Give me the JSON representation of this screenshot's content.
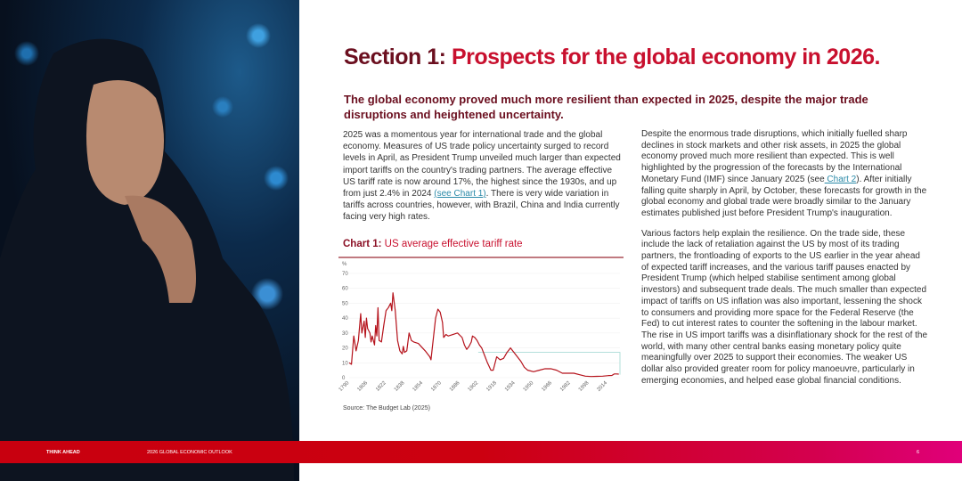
{
  "section": {
    "prefix": "Section 1:",
    "title": "Prospects for the global economy in 2026."
  },
  "subtitle": "The global economy proved much more resilient than expected in 2025, despite the major trade disruptions and heightened uncertainty.",
  "left_column": {
    "p1_before": "2025 was a momentous year for international trade and the global economy. Measures of US trade policy uncertainty surged to record levels in April, as President Trump unveiled much larger than expected import tariffs on the country's trading partners. The average effective US tariff rate is now around 17%, the highest since the 1930s, and up from just 2.4% in 2024 ",
    "p1_link": "(see Chart 1)",
    "p1_after": ". There is very wide variation in tariffs across countries, however, with Brazil, China and India currently facing very high rates."
  },
  "right_column": {
    "p1_before": "Despite the enormous trade disruptions, which initially fuelled sharp declines in stock markets and other risk assets, in 2025 the global economy proved much more resilient than expected. This is well highlighted by the progression of the forecasts by the International Monetary Fund (IMF) since January 2025 (see",
    "p1_link": " Chart 2",
    "p1_after": "). After initially falling quite sharply in April, by October, these forecasts for growth in the global economy and global trade were broadly similar to the January estimates published just before President Trump's inauguration.",
    "p2": "Various factors help explain the resilience. On the trade side, these include the lack of retaliation against the US by most of its trading partners, the frontloading of exports to the US earlier in the year ahead of expected tariff increases, and the various tariff pauses enacted by President Trump (which helped stabilise sentiment among global investors) and subsequent trade deals. The much smaller than expected impact of tariffs on US inflation was also important, lessening the shock to consumers and providing more space for the Federal Reserve (the Fed) to cut interest rates to counter the softening in the labour market. The rise in US import tariffs was a disinflationary shock for the rest of the world, with many other central banks easing monetary policy quite meaningfully over 2025 to support their economies. The weaker US dollar also provided greater room for policy manoeuvre, particularly in emerging economies, and helped ease global financial conditions."
  },
  "chart_data": {
    "type": "line",
    "title_prefix": "Chart 1:",
    "title": "US average effective tariff rate",
    "ylabel": "%",
    "ylim": [
      0,
      70
    ],
    "yticks": [
      "0",
      "10",
      "20",
      "30",
      "40",
      "50",
      "60",
      "70"
    ],
    "xlim": [
      1790,
      2025
    ],
    "xticks": [
      "1790",
      "1806",
      "1822",
      "1838",
      "1854",
      "1870",
      "1886",
      "1902",
      "1918",
      "1934",
      "1950",
      "1966",
      "1982",
      "1998",
      "2014"
    ],
    "grid": true,
    "line_color": "#b5121b",
    "reference_color": "#a9dcd6",
    "reference_value": 17,
    "series": [
      {
        "x": [
          1790,
          1792,
          1794,
          1796,
          1798,
          1800,
          1801,
          1803,
          1804,
          1805,
          1806,
          1808,
          1809,
          1810,
          1812,
          1813,
          1814,
          1815,
          1816,
          1818,
          1820,
          1822,
          1824,
          1826,
          1827,
          1828,
          1830,
          1832,
          1834,
          1836,
          1837,
          1838,
          1840,
          1842,
          1844,
          1846,
          1850,
          1856,
          1860,
          1861,
          1863,
          1865,
          1867,
          1869,
          1871,
          1872,
          1874,
          1876,
          1880,
          1884,
          1888,
          1890,
          1892,
          1894,
          1896,
          1897,
          1899,
          1901,
          1903,
          1905,
          1908,
          1910,
          1913,
          1915,
          1918,
          1921,
          1924,
          1927,
          1930,
          1933,
          1936,
          1939,
          1942,
          1945,
          1950,
          1955,
          1960,
          1965,
          1970,
          1975,
          1980,
          1985,
          1990,
          1995,
          2000,
          2005,
          2010,
          2015,
          2018,
          2020,
          2022,
          2024
        ],
        "y": [
          10,
          9,
          28,
          18,
          25,
          43,
          30,
          38,
          27,
          40,
          33,
          30,
          24,
          28,
          22,
          35,
          28,
          47,
          25,
          24,
          35,
          45,
          47,
          50,
          45,
          57,
          45,
          25,
          18,
          16,
          21,
          17,
          18,
          30,
          25,
          24,
          23,
          18,
          14,
          12,
          26,
          40,
          46,
          44,
          37,
          27,
          29,
          28,
          29,
          30,
          27,
          22,
          19,
          21,
          24,
          28,
          27,
          25,
          22,
          20,
          14,
          10,
          5,
          5,
          14,
          12,
          13,
          17,
          20,
          17,
          14,
          11,
          7,
          5,
          4,
          5,
          6,
          6,
          5,
          3,
          3,
          3,
          2,
          1,
          0.8,
          0.9,
          1,
          1.4,
          1.5,
          2.5,
          2.5,
          2.4
        ]
      }
    ],
    "source": "Source: The Budget Lab (2025)"
  },
  "footer": {
    "left": "THINK AHEAD",
    "middle": "2026 GLOBAL ECONOMIC OUTLOOK",
    "page": "6"
  }
}
